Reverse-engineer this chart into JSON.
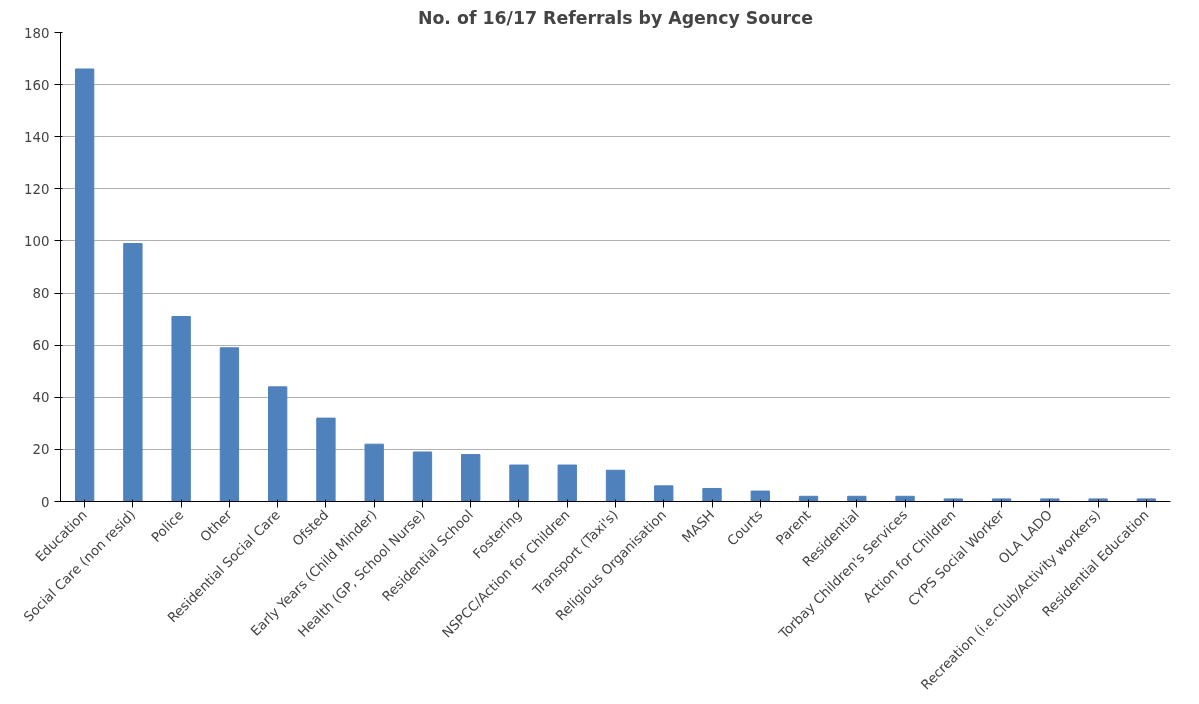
{
  "chart_data": {
    "type": "bar",
    "title": "No. of 16/17 Referrals by Agency Source",
    "categories": [
      "Education",
      "Social Care (non resid)",
      "Police",
      "Other",
      "Residential Social Care",
      "Ofsted",
      "Early Years (Child Minder)",
      "Health (GP, School Nurse)",
      "Residential School",
      "Fostering",
      "NSPCC/Action for Children",
      "Transport (Taxi's)",
      "Religious Organisation",
      "MASH",
      "Courts",
      "Parent",
      "Residential",
      "Torbay Children's Services",
      "Action for Children",
      "CYPS Social Worker",
      "OLA LADO",
      "Recreation (i.e.Club/Activity workers)",
      "Residential Education"
    ],
    "values": [
      166,
      99,
      71,
      59,
      44,
      32,
      22,
      19,
      18,
      14,
      14,
      12,
      6,
      5,
      4,
      2,
      2,
      2,
      1,
      1,
      1,
      1,
      1
    ],
    "color": "#4f81bd",
    "ylim": [
      0,
      180
    ],
    "yticks": [
      0,
      20,
      40,
      60,
      80,
      100,
      120,
      140,
      160,
      180
    ],
    "grid": "y"
  }
}
